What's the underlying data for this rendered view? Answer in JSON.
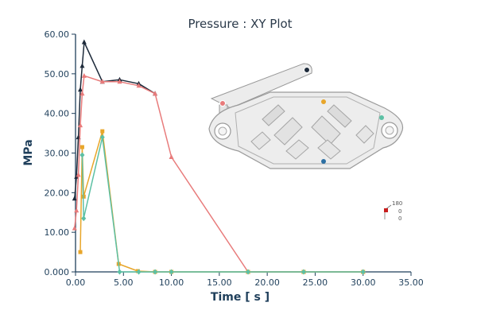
{
  "chart_data": {
    "type": "line",
    "title": "Pressure : XY Plot",
    "xlabel": "Time [ s ]",
    "ylabel": "MPa",
    "xlim": [
      0,
      35
    ],
    "ylim": [
      0,
      60
    ],
    "x_ticks": [
      "0.00",
      "5.00",
      "10.00",
      "15.00",
      "20.00",
      "25.00",
      "30.00",
      "35.00"
    ],
    "y_ticks": [
      "0.000",
      "10.00",
      "20.00",
      "30.00",
      "40.00",
      "50.00",
      "60.00"
    ],
    "grid": false,
    "series": [
      {
        "color": "#1d2a3a",
        "marker": "triangle",
        "x": [
          -0.1,
          0.1,
          0.3,
          0.5,
          0.7,
          0.9,
          2.8,
          4.6,
          6.6,
          8.3
        ],
        "y": [
          18.5,
          24,
          34,
          46,
          52,
          58,
          48,
          48.5,
          47.5,
          45
        ]
      },
      {
        "color": "#e87b7b",
        "marker": "triangle",
        "x": [
          -0.1,
          0.1,
          0.3,
          0.5,
          0.7,
          0.9,
          2.8,
          4.6,
          6.6,
          8.3,
          10.0,
          18.0,
          23.8,
          30.0
        ],
        "y": [
          11,
          15.5,
          24.5,
          37,
          45,
          49.5,
          48,
          48,
          47,
          45,
          29,
          0,
          0,
          0
        ]
      },
      {
        "color": "#e8a62a",
        "marker": "square",
        "x": [
          0.5,
          0.7,
          0.85,
          2.8,
          4.5,
          6.5,
          8.3,
          10.0,
          18.0,
          23.8,
          30.0
        ],
        "y": [
          5,
          31.5,
          19,
          35.5,
          2,
          0.2,
          0,
          0,
          0,
          0,
          0
        ]
      },
      {
        "color": "#5cc0a4",
        "marker": "diamond",
        "x": [
          0.7,
          0.85,
          2.8,
          4.6,
          6.6,
          8.3,
          10.0,
          18.0,
          23.8,
          30.0
        ],
        "y": [
          29.5,
          13.5,
          34,
          0,
          0,
          0,
          0,
          0,
          0,
          0
        ]
      }
    ]
  },
  "triad": {
    "value_top": "180",
    "value_mid": "0",
    "value_bot": "0"
  },
  "colors": {
    "axis": "#1f3f5b",
    "part_fill": "#ededed",
    "part_stroke": "#9a9a9a"
  }
}
